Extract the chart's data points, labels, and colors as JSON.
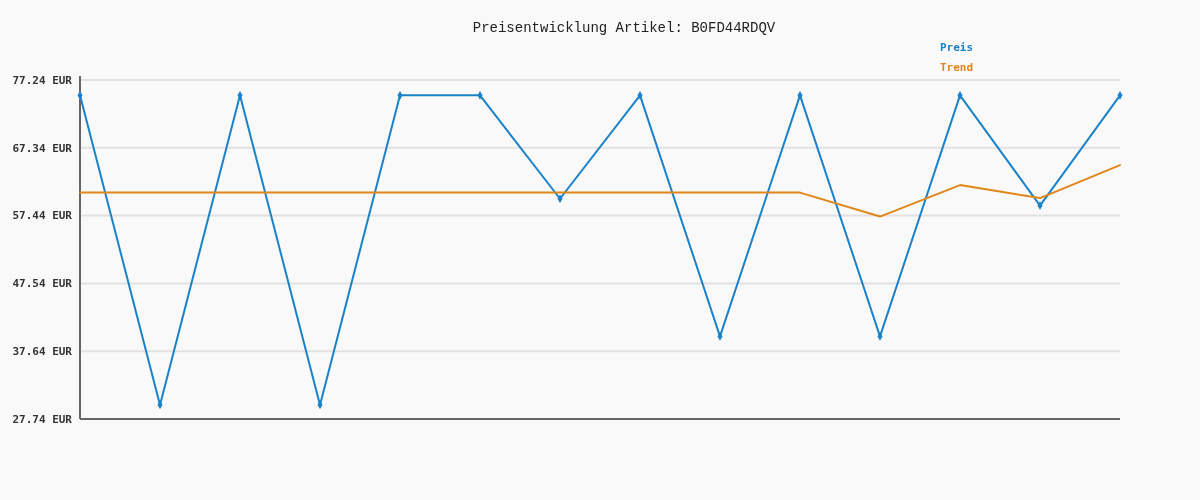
{
  "chart_data": {
    "type": "line",
    "title": "Preisentwicklung Artikel: B0FD44RDQV",
    "categories": [
      null,
      null,
      null,
      null,
      null,
      null,
      null,
      null,
      null,
      null,
      null,
      null,
      null,
      null
    ],
    "series": [
      {
        "name": "Preis",
        "color": "#1a82c8",
        "marker": "diamond",
        "values": [
          75.0,
          29.8,
          75.0,
          29.8,
          75.0,
          75.0,
          59.9,
          75.0,
          39.8,
          75.0,
          39.8,
          75.0,
          58.9,
          75.0
        ]
      },
      {
        "name": "Trend",
        "color": "#e0861a",
        "values": [
          60.8,
          60.8,
          60.8,
          60.8,
          60.8,
          60.8,
          60.8,
          60.8,
          60.8,
          60.8,
          57.3,
          61.9,
          60.0,
          64.8
        ]
      }
    ],
    "ylim": [
      27.74,
      77.24
    ],
    "yticks": [
      {
        "value": 27.74,
        "label": "27.74 EUR"
      },
      {
        "value": 37.64,
        "label": "37.64 EUR"
      },
      {
        "value": 47.54,
        "label": "47.54 EUR"
      },
      {
        "value": 57.44,
        "label": "57.44 EUR"
      },
      {
        "value": 67.34,
        "label": "67.34 EUR"
      },
      {
        "value": 77.24,
        "label": "77.24 EUR"
      }
    ],
    "grid": "y",
    "legend": "top right",
    "tick_labels": "y"
  }
}
